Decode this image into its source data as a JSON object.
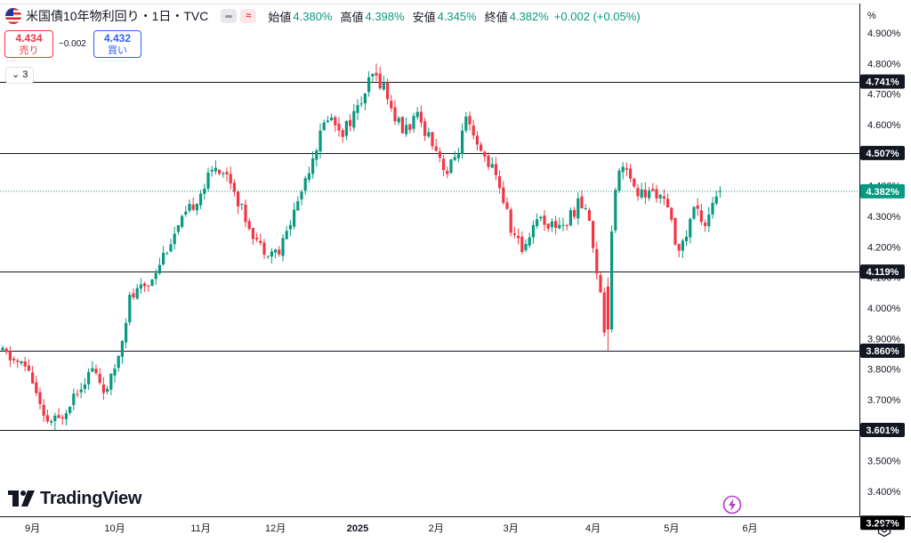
{
  "header": {
    "title": "米国債10年物利回り・1日・TVC",
    "toggle_red_label": "≈",
    "ohlc": [
      {
        "label": "始値",
        "value": "4.380%"
      },
      {
        "label": "高値",
        "value": "4.398%"
      },
      {
        "label": "安値",
        "value": "4.345%"
      },
      {
        "label": "終値",
        "value": "4.382%"
      }
    ],
    "change": "+0.002 (+0.05%)"
  },
  "trade": {
    "sell_value": "4.434",
    "sell_label": "売り",
    "spread": "−0.002",
    "buy_value": "4.432",
    "buy_label": "買い"
  },
  "collapse_count": "3",
  "brand": "TradingView",
  "unit_label": "%",
  "colors": {
    "up": "#089981",
    "down": "#f23645",
    "line": "#131722",
    "axis": "#131722"
  },
  "chart_data": {
    "type": "candlestick",
    "y_axis": {
      "range": [
        3.297,
        4.96
      ],
      "ticks": [
        3.4,
        3.5,
        3.6,
        3.7,
        3.8,
        3.9,
        4.0,
        4.1,
        4.2,
        4.3,
        4.4,
        4.5,
        4.6,
        4.7,
        4.8,
        4.9
      ],
      "tick_labels": [
        "3.400%",
        "3.500%",
        "3.600%",
        "3.700%",
        "3.800%",
        "3.900%",
        "4.000%",
        "4.100%",
        "4.200%",
        "4.300%",
        "4.400%",
        "4.500%",
        "4.600%",
        "4.700%",
        "4.800%",
        "4.900%"
      ],
      "side": "right"
    },
    "x_axis": {
      "labels": [
        {
          "label": "9月",
          "index": 8,
          "bold": false
        },
        {
          "label": "10月",
          "index": 30,
          "bold": false
        },
        {
          "label": "11月",
          "index": 53,
          "bold": false
        },
        {
          "label": "12月",
          "index": 73,
          "bold": false
        },
        {
          "label": "2025",
          "index": 95,
          "bold": true
        },
        {
          "label": "2月",
          "index": 116,
          "bold": false
        },
        {
          "label": "3月",
          "index": 136,
          "bold": false
        },
        {
          "label": "4月",
          "index": 158,
          "bold": false
        },
        {
          "label": "5月",
          "index": 179,
          "bold": false
        },
        {
          "label": "6月",
          "index": 200,
          "bold": false
        }
      ]
    },
    "horizontal_lines": [
      {
        "value": 4.741,
        "label": "4.741%"
      },
      {
        "value": 4.507,
        "label": "4.507%"
      },
      {
        "value": 4.119,
        "label": "4.119%"
      },
      {
        "value": 3.86,
        "label": "3.860%"
      },
      {
        "value": 3.601,
        "label": "3.601%"
      }
    ],
    "last_price": {
      "value": 4.382,
      "label": "4.382%"
    },
    "bottom_price": {
      "value": 3.297,
      "label": "3.297%"
    },
    "grid": false,
    "anchors": [
      [
        0,
        3.86
      ],
      [
        5,
        3.82
      ],
      [
        8,
        3.8
      ],
      [
        12,
        3.63
      ],
      [
        16,
        3.63
      ],
      [
        20,
        3.72
      ],
      [
        25,
        3.8
      ],
      [
        29,
        3.72
      ],
      [
        32,
        3.85
      ],
      [
        35,
        4.03
      ],
      [
        40,
        4.08
      ],
      [
        45,
        4.2
      ],
      [
        50,
        4.3
      ],
      [
        55,
        4.4
      ],
      [
        58,
        4.47
      ],
      [
        62,
        4.42
      ],
      [
        65,
        4.32
      ],
      [
        70,
        4.2
      ],
      [
        75,
        4.18
      ],
      [
        80,
        4.35
      ],
      [
        84,
        4.5
      ],
      [
        88,
        4.63
      ],
      [
        92,
        4.58
      ],
      [
        96,
        4.65
      ],
      [
        100,
        4.76
      ],
      [
        103,
        4.73
      ],
      [
        105,
        4.65
      ],
      [
        108,
        4.58
      ],
      [
        112,
        4.62
      ],
      [
        116,
        4.55
      ],
      [
        120,
        4.44
      ],
      [
        123,
        4.52
      ],
      [
        125,
        4.61
      ],
      [
        128,
        4.52
      ],
      [
        131,
        4.48
      ],
      [
        134,
        4.4
      ],
      [
        137,
        4.26
      ],
      [
        140,
        4.19
      ],
      [
        144,
        4.3
      ],
      [
        148,
        4.27
      ],
      [
        152,
        4.28
      ],
      [
        155,
        4.34
      ],
      [
        157,
        4.33
      ],
      [
        159,
        4.21
      ],
      [
        161,
        4.04
      ],
      [
        162,
        3.93
      ],
      [
        163,
        4.2
      ],
      [
        164,
        4.36
      ],
      [
        167,
        4.48
      ],
      [
        170,
        4.38
      ],
      [
        173,
        4.37
      ],
      [
        176,
        4.38
      ],
      [
        179,
        4.32
      ],
      [
        181,
        4.22
      ],
      [
        183,
        4.2
      ],
      [
        186,
        4.33
      ],
      [
        189,
        4.28
      ],
      [
        191,
        4.35
      ]
    ]
  }
}
